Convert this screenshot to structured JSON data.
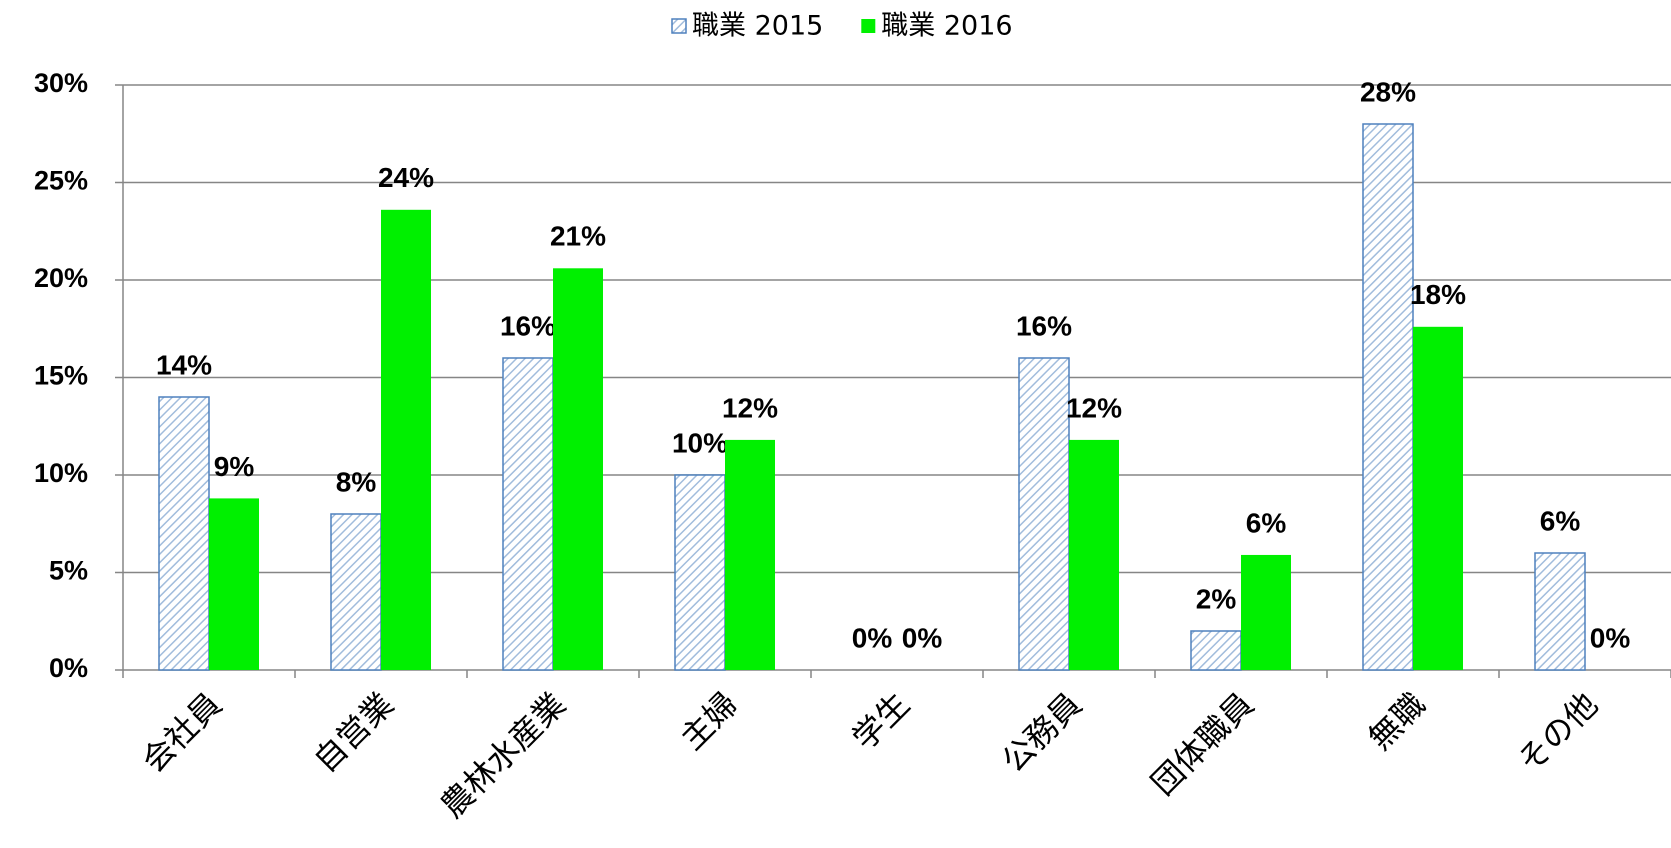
{
  "chart_data": {
    "type": "bar",
    "categories": [
      "会社員",
      "自営業",
      "農林水産業",
      "主婦",
      "学生",
      "公務員",
      "団体職員",
      "無職",
      "その他"
    ],
    "series": [
      {
        "name": "職業 2015",
        "color": "#4f81bd",
        "pattern": "hatch",
        "values": [
          14,
          8,
          16,
          10,
          0,
          16,
          2,
          28,
          6
        ],
        "value_labels": [
          "14%",
          "8%",
          "16%",
          "10%",
          "0%",
          "16%",
          "2%",
          "28%",
          "6%"
        ]
      },
      {
        "name": "職業 2016",
        "color": "#00f000",
        "values": [
          8.8,
          23.6,
          20.6,
          11.8,
          0,
          11.8,
          5.9,
          17.6,
          0
        ],
        "value_labels": [
          "9%",
          "24%",
          "21%",
          "12%",
          "0%",
          "12%",
          "6%",
          "18%",
          "0%"
        ]
      }
    ],
    "ylim": [
      0,
      30
    ],
    "yticks": [
      {
        "value": 0,
        "label": "0%"
      },
      {
        "value": 5,
        "label": "5%"
      },
      {
        "value": 10,
        "label": "10%"
      },
      {
        "value": 15,
        "label": "15%"
      },
      {
        "value": 20,
        "label": "20%"
      },
      {
        "value": 25,
        "label": "25%"
      },
      {
        "value": 30,
        "label": "30%"
      }
    ],
    "grid": true,
    "legend": "top"
  }
}
